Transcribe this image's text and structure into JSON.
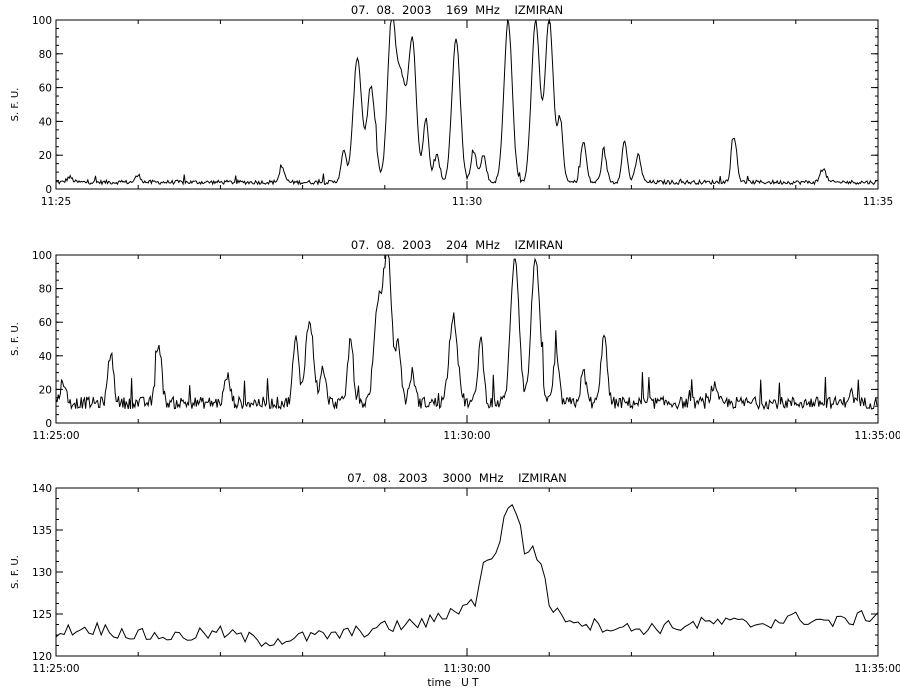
{
  "chart_data": [
    {
      "type": "line",
      "title": "07.  08.  2003    169  MHz    IZMIRAN",
      "ylabel": "S. F. U.",
      "xlabel": "",
      "ylim": [
        0,
        100
      ],
      "xlim": [
        "11:25",
        "11:35"
      ],
      "y_ticks": [
        "0",
        "20",
        "40",
        "60",
        "80",
        "100"
      ],
      "x_ticks": [
        "11:25",
        "11:30",
        "11:35"
      ],
      "grid": false,
      "baseline": 4,
      "peaks": [
        {
          "t": "11:25:10",
          "v": 7
        },
        {
          "t": "11:26:00",
          "v": 8
        },
        {
          "t": "11:27:45",
          "v": 12
        },
        {
          "t": "11:28:30",
          "v": 22
        },
        {
          "t": "11:28:40",
          "v": 78
        },
        {
          "t": "11:28:50",
          "v": 60
        },
        {
          "t": "11:29:05",
          "v": 100
        },
        {
          "t": "11:29:12",
          "v": 62
        },
        {
          "t": "11:29:20",
          "v": 88
        },
        {
          "t": "11:29:30",
          "v": 42
        },
        {
          "t": "11:29:38",
          "v": 20
        },
        {
          "t": "11:29:52",
          "v": 90
        },
        {
          "t": "11:30:05",
          "v": 22
        },
        {
          "t": "11:30:12",
          "v": 20
        },
        {
          "t": "11:30:30",
          "v": 100
        },
        {
          "t": "11:30:50",
          "v": 100
        },
        {
          "t": "11:31:00",
          "v": 100
        },
        {
          "t": "11:31:08",
          "v": 40
        },
        {
          "t": "11:31:25",
          "v": 28
        },
        {
          "t": "11:31:40",
          "v": 20
        },
        {
          "t": "11:31:55",
          "v": 28
        },
        {
          "t": "11:32:05",
          "v": 20
        },
        {
          "t": "11:33:15",
          "v": 30
        },
        {
          "t": "11:34:20",
          "v": 12
        }
      ]
    },
    {
      "type": "line",
      "title": "07.  08.  2003    204  MHz    IZMIRAN",
      "ylabel": "S. F. U.",
      "xlabel": "",
      "ylim": [
        0,
        100
      ],
      "xlim": [
        "11:25:00",
        "11:35:00"
      ],
      "y_ticks": [
        "0",
        "20",
        "40",
        "60",
        "80",
        "100"
      ],
      "x_ticks": [
        "11:25:00",
        "11:30:00",
        "11:35:00"
      ],
      "grid": false,
      "baseline": 12,
      "peaks": [
        {
          "t": "11:25:05",
          "v": 25
        },
        {
          "t": "11:25:40",
          "v": 42
        },
        {
          "t": "11:26:15",
          "v": 48
        },
        {
          "t": "11:27:05",
          "v": 28
        },
        {
          "t": "11:27:55",
          "v": 50
        },
        {
          "t": "11:28:05",
          "v": 60
        },
        {
          "t": "11:28:15",
          "v": 30
        },
        {
          "t": "11:28:35",
          "v": 50
        },
        {
          "t": "11:28:55",
          "v": 66
        },
        {
          "t": "11:29:02",
          "v": 100
        },
        {
          "t": "11:29:10",
          "v": 45
        },
        {
          "t": "11:29:20",
          "v": 30
        },
        {
          "t": "11:29:50",
          "v": 65
        },
        {
          "t": "11:30:10",
          "v": 50
        },
        {
          "t": "11:30:35",
          "v": 100
        },
        {
          "t": "11:30:50",
          "v": 100
        },
        {
          "t": "11:31:05",
          "v": 40
        },
        {
          "t": "11:31:25",
          "v": 30
        },
        {
          "t": "11:31:40",
          "v": 55
        },
        {
          "t": "11:33:00",
          "v": 22
        },
        {
          "t": "11:34:40",
          "v": 18
        }
      ]
    },
    {
      "type": "line",
      "title": "07.  08.  2003    3000  MHz    IZMIRAN",
      "ylabel": "S. F. U.",
      "xlabel": "time   U T",
      "ylim": [
        120,
        140
      ],
      "xlim": [
        "11:25:00",
        "11:35:00"
      ],
      "y_ticks": [
        "120",
        "125",
        "130",
        "135",
        "140"
      ],
      "x_ticks": [
        "11:25:00",
        "11:30:00",
        "11:35:00"
      ],
      "grid": false,
      "x": [
        "11:25:00",
        "11:25:30",
        "11:26:00",
        "11:26:30",
        "11:27:00",
        "11:27:30",
        "11:28:00",
        "11:28:30",
        "11:29:00",
        "11:29:30",
        "11:29:40",
        "11:29:50",
        "11:30:00",
        "11:30:06",
        "11:30:12",
        "11:30:18",
        "11:30:24",
        "11:30:30",
        "11:30:36",
        "11:30:42",
        "11:30:48",
        "11:30:54",
        "11:31:00",
        "11:31:06",
        "11:31:30",
        "11:32:00",
        "11:32:30",
        "11:33:00",
        "11:33:30",
        "11:34:00",
        "11:34:30",
        "11:35:00"
      ],
      "y": [
        123,
        123.3,
        122.5,
        122.3,
        122.8,
        121.8,
        122.2,
        122.6,
        123.4,
        124,
        124.5,
        125.5,
        126,
        126.5,
        131.5,
        131,
        134,
        138.2,
        137.5,
        132.2,
        133,
        131,
        126.5,
        125,
        123.8,
        123.2,
        123.5,
        124,
        123.8,
        124.5,
        124,
        125
      ]
    }
  ]
}
